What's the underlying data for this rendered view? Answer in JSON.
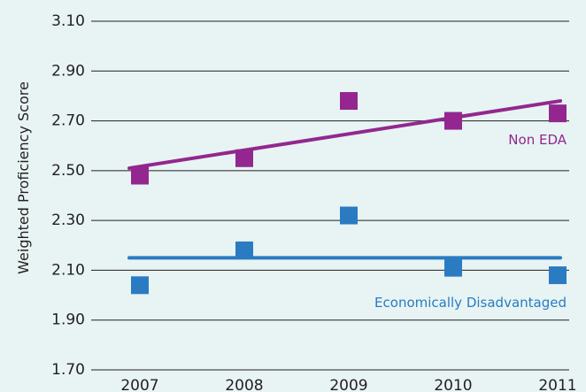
{
  "chart_data": {
    "type": "scatter",
    "title": "",
    "xlabel": "",
    "ylabel": "Weighted Proficiency Score",
    "ylim": [
      1.7,
      3.1
    ],
    "y_ticks": [
      "1.70",
      "1.90",
      "2.10",
      "2.30",
      "2.50",
      "2.70",
      "2.90",
      "3.10"
    ],
    "x_ticks": [
      "2007",
      "2008",
      "2009",
      "2010",
      "2011"
    ],
    "grid": "horizontal",
    "series": [
      {
        "name": "Non EDA",
        "color": "#93278f",
        "marker": "square",
        "points": [
          {
            "x": "2007",
            "y": 2.48
          },
          {
            "x": "2008",
            "y": 2.55
          },
          {
            "x": "2009",
            "y": 2.78
          },
          {
            "x": "2010",
            "y": 2.7
          },
          {
            "x": "2011",
            "y": 2.73
          }
        ],
        "trendline": {
          "start": 2.51,
          "end": 2.78
        }
      },
      {
        "name": "Economically Disadvantaged",
        "color": "#2a7bc2",
        "marker": "square",
        "points": [
          {
            "x": "2007",
            "y": 2.04
          },
          {
            "x": "2008",
            "y": 2.18
          },
          {
            "x": "2009",
            "y": 2.32
          },
          {
            "x": "2010",
            "y": 2.11
          },
          {
            "x": "2011",
            "y": 2.08
          }
        ],
        "trendline": {
          "start": 2.15,
          "end": 2.15
        }
      }
    ]
  }
}
